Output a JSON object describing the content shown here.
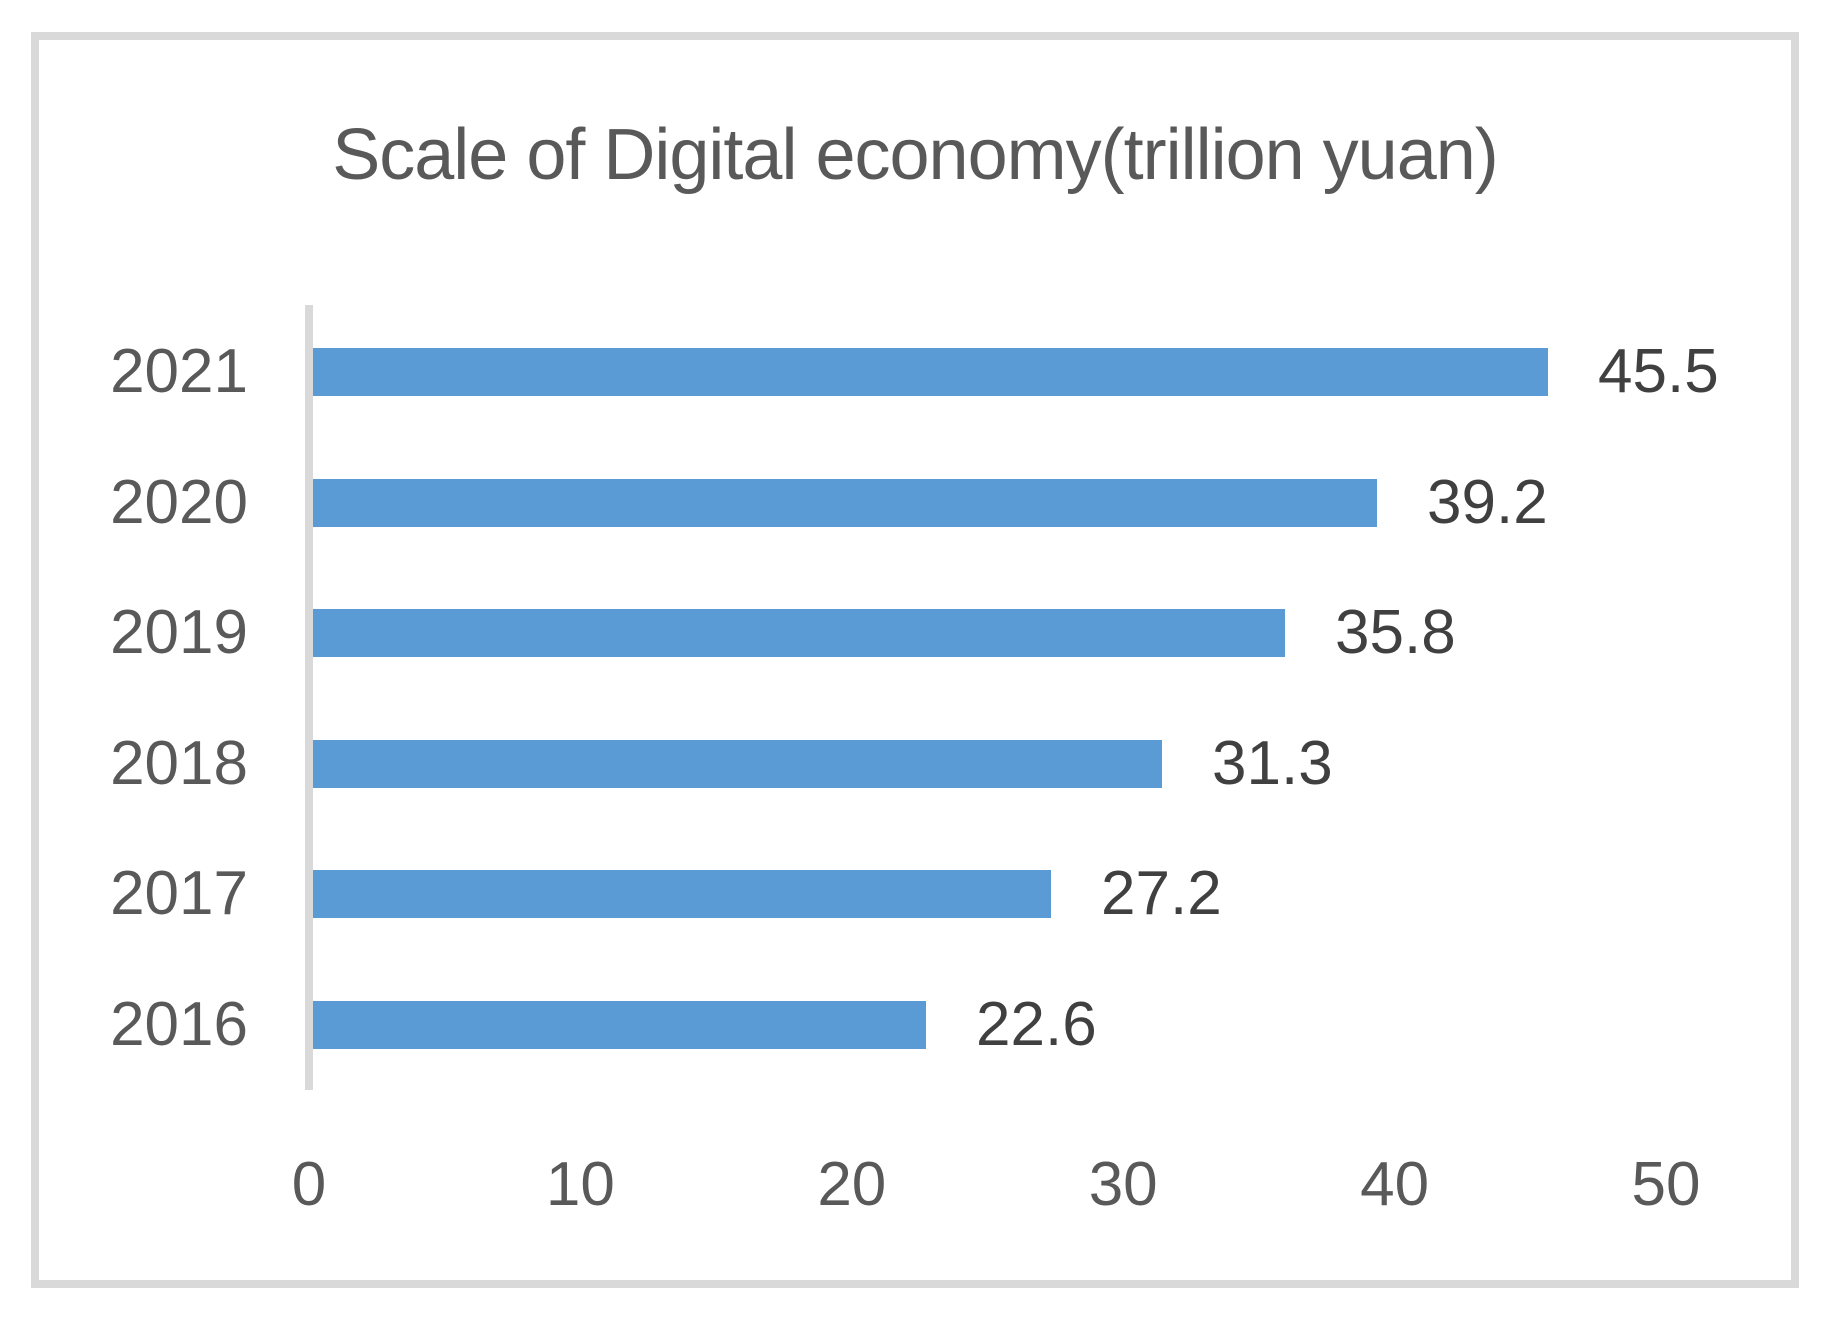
{
  "chart_data": {
    "type": "bar",
    "orientation": "horizontal",
    "title": "Scale of Digital economy(trillion yuan)",
    "categories": [
      "2021",
      "2020",
      "2019",
      "2018",
      "2017",
      "2016"
    ],
    "values": [
      45.5,
      39.2,
      35.8,
      31.3,
      27.2,
      22.6
    ],
    "data_labels": [
      "45.5",
      "39.2",
      "35.8",
      "31.3",
      "27.2",
      "22.6"
    ],
    "x_ticks": [
      "0",
      "10",
      "20",
      "30",
      "40",
      "50"
    ],
    "xlim": [
      0,
      50
    ],
    "xlabel": "",
    "ylabel": "",
    "grid": false,
    "legend": false,
    "colors": {
      "bar": "#5b9bd5",
      "axis_line": "#d9d9d9",
      "frame_border": "#d9d9d9",
      "title_text": "#595959",
      "category_text": "#595959",
      "tick_text": "#595959",
      "value_label_text": "#404040",
      "background": "#ffffff"
    }
  }
}
